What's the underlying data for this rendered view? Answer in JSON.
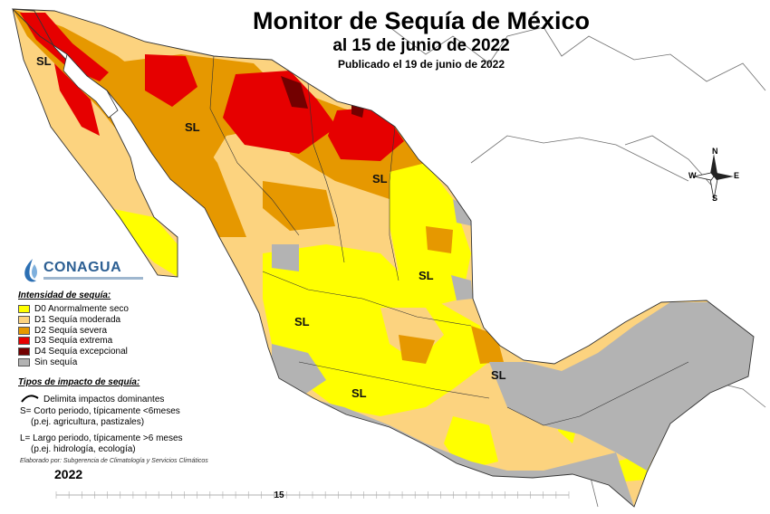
{
  "header": {
    "title": "Monitor de Sequía de México",
    "date": "al 15 de junio de 2022",
    "published": "Publicado el 19 de junio de 2022"
  },
  "logo": {
    "name": "CONAGUA"
  },
  "map_labels": [
    "SL",
    "SL",
    "SL",
    "SL",
    "SL",
    "SL",
    "SL"
  ],
  "compass": {
    "north": "N",
    "south": "S",
    "east": "E",
    "west": "W"
  },
  "legend": {
    "heading": "Intensidad de sequía:",
    "items": [
      {
        "label": "D0 Anormalmente seco",
        "color": "#ffff00"
      },
      {
        "label": "D1 Sequía moderada",
        "color": "#fcd37f"
      },
      {
        "label": "D2 Sequía severa",
        "color": "#e69800"
      },
      {
        "label": "D3 Sequía extrema",
        "color": "#e60000"
      },
      {
        "label": "D4 Sequía excepcional",
        "color": "#730000"
      },
      {
        "label": "Sin sequía",
        "color": "#b3b3b3"
      }
    ]
  },
  "impact": {
    "heading": "Tipos de impacto de sequía:",
    "boundary": "Delimita impactos dominantes",
    "short_1": "S= Corto periodo, típicamente <6meses",
    "short_2": "(p.ej. agricultura, pastizales)",
    "long_1": "L= Largo periodo, típicamente >6 meses",
    "long_2": "(p.ej. hidrología, ecología)"
  },
  "credit": "Elaborado por: Subgerencia de Climatología y Servicios Climáticos",
  "year": "2022",
  "timeline": {
    "marker": "15"
  }
}
